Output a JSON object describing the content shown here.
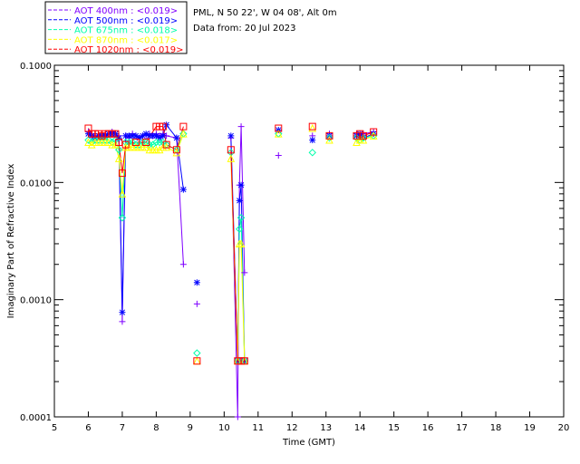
{
  "header": {
    "site": "PML, N 50 22', W 04 08', Alt 0m",
    "date": "Data from: 20 Jul 2023"
  },
  "chart_data": {
    "type": "scatter",
    "title": "",
    "xlabel": "Time (GMT)",
    "ylabel": "Imaginary Part of Refractive Index",
    "xlim": [
      5,
      20
    ],
    "ylim": [
      0.0001,
      0.1
    ],
    "yscale": "log",
    "xticks": [
      "5",
      "6",
      "7",
      "8",
      "9",
      "10",
      "11",
      "12",
      "13",
      "14",
      "15",
      "16",
      "17",
      "18",
      "19",
      "20"
    ],
    "yticks": [
      "0.0001",
      "0.0010",
      "0.0100",
      "0.1000"
    ],
    "legend_position": "top-left, outside plot",
    "series": [
      {
        "name": "AOT 400nm",
        "legend_label": "AOT  400nm : <0.019>",
        "color": "#7f00ff",
        "marker": "plus",
        "x": [
          6.0,
          6.1,
          6.2,
          6.3,
          6.4,
          6.5,
          6.6,
          6.7,
          6.8,
          6.9,
          7.0,
          7.1,
          7.2,
          7.3,
          7.4,
          7.5,
          7.6,
          7.7,
          7.8,
          7.9,
          8.0,
          8.1,
          8.2,
          8.3,
          8.6,
          8.8,
          9.2,
          10.2,
          10.4,
          10.45,
          10.5,
          10.6,
          11.6,
          12.6,
          13.1,
          13.9,
          14.0,
          14.1,
          14.4
        ],
        "y": [
          0.027,
          0.026,
          0.025,
          0.025,
          0.025,
          0.026,
          0.026,
          0.027,
          0.026,
          0.025,
          0.00065,
          0.025,
          0.024,
          0.026,
          0.025,
          0.024,
          0.025,
          0.025,
          0.026,
          0.025,
          0.026,
          0.025,
          0.026,
          0.025,
          0.024,
          0.002,
          0.00092,
          0.024,
          0.0001,
          0.0095,
          0.03,
          0.0017,
          0.017,
          0.025,
          0.026,
          0.026,
          0.025,
          0.026,
          0.027
        ]
      },
      {
        "name": "AOT 500nm",
        "legend_label": "AOT  500nm : <0.019>",
        "color": "#0000ff",
        "marker": "asterisk",
        "x": [
          6.0,
          6.1,
          6.2,
          6.3,
          6.4,
          6.5,
          6.6,
          6.7,
          6.8,
          6.9,
          7.0,
          7.1,
          7.2,
          7.3,
          7.4,
          7.5,
          7.6,
          7.7,
          7.8,
          7.9,
          8.0,
          8.1,
          8.2,
          8.3,
          8.6,
          8.8,
          9.2,
          10.2,
          10.4,
          10.45,
          10.5,
          10.6,
          11.6,
          12.6,
          13.1,
          13.9,
          14.0,
          14.1,
          14.4
        ],
        "y": [
          0.026,
          0.025,
          0.024,
          0.025,
          0.025,
          0.025,
          0.026,
          0.026,
          0.026,
          0.024,
          0.00078,
          0.025,
          0.025,
          0.025,
          0.025,
          0.024,
          0.025,
          0.026,
          0.025,
          0.025,
          0.025,
          0.024,
          0.025,
          0.031,
          0.024,
          0.0087,
          0.0014,
          0.025,
          0.0003,
          0.007,
          0.0095,
          0.0003,
          0.028,
          0.023,
          0.025,
          0.025,
          0.026,
          0.024,
          0.026
        ]
      },
      {
        "name": "AOT 675nm",
        "legend_label": "AOT  675nm : <0.018>",
        "color": "#00ffaa",
        "marker": "diamond",
        "x": [
          6.0,
          6.1,
          6.2,
          6.3,
          6.4,
          6.5,
          6.6,
          6.7,
          6.8,
          6.9,
          7.0,
          7.1,
          7.2,
          7.3,
          7.4,
          7.5,
          7.6,
          7.7,
          7.8,
          7.9,
          8.0,
          8.1,
          8.2,
          8.3,
          8.6,
          8.8,
          9.2,
          10.2,
          10.4,
          10.45,
          10.5,
          10.6,
          11.6,
          12.6,
          13.1,
          13.9,
          14.0,
          14.1,
          14.4
        ],
        "y": [
          0.023,
          0.022,
          0.023,
          0.023,
          0.023,
          0.023,
          0.023,
          0.022,
          0.023,
          0.019,
          0.005,
          0.022,
          0.022,
          0.022,
          0.021,
          0.021,
          0.022,
          0.022,
          0.021,
          0.021,
          0.022,
          0.022,
          0.022,
          0.021,
          0.019,
          0.026,
          0.00035,
          0.018,
          0.0003,
          0.004,
          0.005,
          0.0003,
          0.026,
          0.018,
          0.024,
          0.024,
          0.023,
          0.024,
          0.025
        ]
      },
      {
        "name": "AOT 870nm",
        "legend_label": "AOT  870nm : <0.017>",
        "color": "#ffff00",
        "marker": "triangle",
        "x": [
          6.0,
          6.1,
          6.2,
          6.3,
          6.4,
          6.5,
          6.6,
          6.7,
          6.8,
          6.9,
          7.0,
          7.1,
          7.2,
          7.3,
          7.4,
          7.5,
          7.6,
          7.7,
          7.8,
          7.9,
          8.0,
          8.1,
          8.2,
          8.3,
          8.6,
          8.8,
          9.2,
          10.2,
          10.4,
          10.45,
          10.5,
          10.6,
          11.6,
          12.6,
          13.1,
          13.9,
          14.0,
          14.1,
          14.4
        ],
        "y": [
          0.022,
          0.021,
          0.022,
          0.022,
          0.022,
          0.022,
          0.022,
          0.021,
          0.021,
          0.016,
          0.008,
          0.02,
          0.02,
          0.02,
          0.02,
          0.02,
          0.02,
          0.02,
          0.019,
          0.019,
          0.019,
          0.019,
          0.02,
          0.02,
          0.018,
          0.026,
          0.0003,
          0.016,
          0.0003,
          0.003,
          0.003,
          0.0003,
          0.026,
          0.029,
          0.023,
          0.022,
          0.023,
          0.023,
          0.025
        ]
      },
      {
        "name": "AOT 1020nm",
        "legend_label": "AOT 1020nm : <0.019>",
        "color": "#ff0000",
        "marker": "square",
        "x": [
          6.0,
          6.1,
          6.2,
          6.3,
          6.4,
          6.5,
          6.6,
          6.7,
          6.8,
          6.9,
          7.0,
          7.1,
          7.4,
          7.7,
          8.0,
          8.1,
          8.2,
          8.3,
          8.6,
          8.8,
          9.2,
          10.2,
          10.4,
          10.5,
          10.6,
          11.6,
          12.6,
          13.1,
          13.9,
          14.0,
          14.1,
          14.4
        ],
        "y": [
          0.029,
          0.026,
          0.026,
          0.026,
          0.025,
          0.026,
          0.026,
          0.026,
          0.026,
          0.022,
          0.012,
          0.021,
          0.022,
          0.022,
          0.03,
          0.03,
          0.03,
          0.021,
          0.019,
          0.03,
          0.0003,
          0.019,
          0.0003,
          0.0003,
          0.0003,
          0.029,
          0.03,
          0.025,
          0.025,
          0.026,
          0.025,
          0.027
        ]
      }
    ]
  }
}
